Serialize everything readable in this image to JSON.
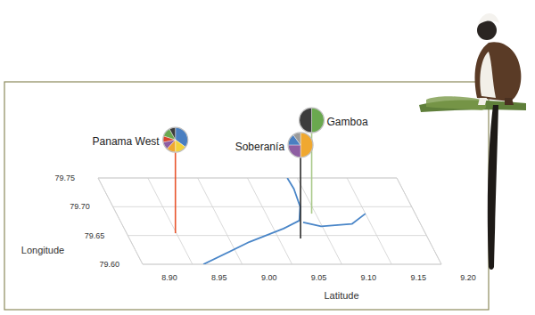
{
  "chart_data": {
    "type": "3d-map-pies",
    "x_label": "Latitude",
    "y_label": "Longitude",
    "xlim": [
      8.9,
      9.2
    ],
    "ylim": [
      79.6,
      79.75
    ],
    "xticks": [
      {
        "value": 8.9,
        "label": "8.90"
      },
      8.95,
      {
        "value": 9.0,
        "label": "9.00"
      },
      9.05,
      {
        "value": 9.1,
        "label": "9.10"
      },
      9.15,
      {
        "value": 9.2,
        "label": "9.20"
      }
    ],
    "yticks": [
      {
        "value": 79.6,
        "label": "79.60"
      },
      79.65,
      {
        "value": 79.7,
        "label": "79.70"
      },
      79.75
    ],
    "grid": true,
    "series": [
      {
        "type": "line",
        "color": "#4a86c8",
        "x": [
          8.961,
          9.019,
          9.06,
          9.08,
          9.088,
          9.091,
          9.09,
          null,
          9.083,
          9.099,
          9.131,
          9.15
        ],
        "values": [
          79.6,
          79.639,
          79.662,
          79.676,
          79.7,
          79.731,
          79.75,
          null,
          79.673,
          79.666,
          79.67,
          79.688
        ]
      }
    ],
    "sites": [
      {
        "name": "Gamboa",
        "lat": 9.096,
        "lon": 79.688,
        "color": "#a9c98a",
        "pie_values": [
          50,
          50
        ],
        "pie_colors": [
          "#6aa84f",
          "#3c3c3c"
        ]
      },
      {
        "name": "Soberanía",
        "lat": 9.072,
        "lon": 79.645,
        "color": "#2b2b2b",
        "pie_values": [
          50,
          25,
          15,
          10
        ],
        "pie_colors": [
          "#f0a830",
          "#8e5ea2",
          "#4a7fc1",
          "#9a9a9a"
        ]
      },
      {
        "name": "Panama West",
        "lat": 8.949,
        "lon": 79.654,
        "color": "#e8552d",
        "pie_values": [
          35,
          15,
          12,
          10,
          8,
          12,
          8
        ],
        "pie_colors": [
          "#4a7fc1",
          "#f3d23a",
          "#f0a830",
          "#8e5ea2",
          "#d9452b",
          "#6aa84f",
          "#3c3c3c"
        ]
      }
    ]
  }
}
